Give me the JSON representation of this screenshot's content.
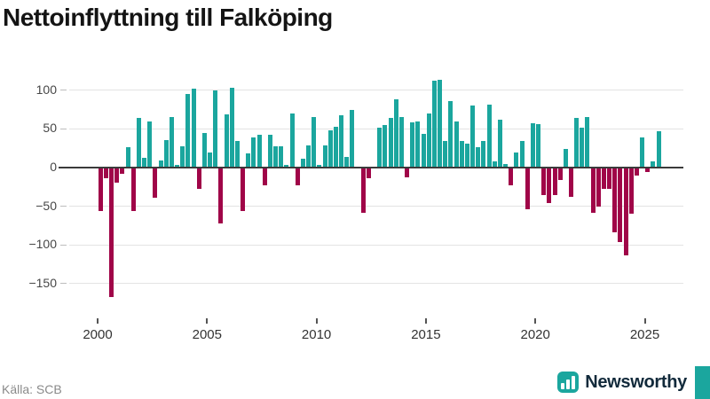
{
  "title": "Nettoinflyttning till Falköping",
  "source_label": "Källa: SCB",
  "brand": {
    "name": "Newsworthy",
    "icon": "bar-chart-icon"
  },
  "colors": {
    "positive": "#1BA69E",
    "negative": "#A00548",
    "zero_line": "#3b3b3b",
    "gridline": "#e3e3e3",
    "brand_teal": "#1BA69E",
    "brand_text": "#122a3b"
  },
  "chart_data": {
    "type": "bar",
    "title": "Nettoinflyttning till Falköping",
    "xlabel": "",
    "ylabel": "",
    "frequency": "quarterly",
    "grid": "horizontal",
    "legend": "none",
    "ylim": [
      -190,
      119
    ],
    "yticks": [
      100,
      50,
      0,
      -50,
      -100,
      -150
    ],
    "xticks": [
      2000,
      2005,
      2010,
      2015,
      2020,
      2025
    ],
    "series": [
      {
        "year": 2000,
        "values": [
          -55,
          -13,
          -167,
          -18
        ]
      },
      {
        "year": 2001,
        "values": [
          -7,
          26,
          -55,
          64
        ]
      },
      {
        "year": 2002,
        "values": [
          13,
          60,
          -38,
          9
        ]
      },
      {
        "year": 2003,
        "values": [
          36,
          65,
          3,
          28
        ]
      },
      {
        "year": 2004,
        "values": [
          95,
          102,
          -26,
          45
        ]
      },
      {
        "year": 2005,
        "values": [
          19,
          100,
          -71,
          69
        ]
      },
      {
        "year": 2006,
        "values": [
          103,
          34,
          -55,
          18
        ]
      },
      {
        "year": 2007,
        "values": [
          39,
          42,
          -22,
          43
        ]
      },
      {
        "year": 2008,
        "values": [
          28,
          28,
          4,
          70
        ]
      },
      {
        "year": 2009,
        "values": [
          -22,
          11,
          29,
          65
        ]
      },
      {
        "year": 2010,
        "values": [
          4,
          29,
          48,
          53
        ]
      },
      {
        "year": 2011,
        "values": [
          68,
          14,
          75,
          0
        ]
      },
      {
        "year": 2012,
        "values": [
          -57,
          -13,
          0,
          52
        ]
      },
      {
        "year": 2013,
        "values": [
          55,
          64,
          88,
          66
        ]
      },
      {
        "year": 2014,
        "values": [
          -12,
          58,
          60,
          44
        ]
      },
      {
        "year": 2015,
        "values": [
          70,
          112,
          114,
          34
        ]
      },
      {
        "year": 2016,
        "values": [
          86,
          60,
          35,
          31
        ]
      },
      {
        "year": 2017,
        "values": [
          80,
          26,
          34,
          82
        ]
      },
      {
        "year": 2018,
        "values": [
          8,
          62,
          5,
          -22
        ]
      },
      {
        "year": 2019,
        "values": [
          20,
          34,
          -53,
          57
        ]
      },
      {
        "year": 2020,
        "values": [
          56,
          -34,
          -45,
          -34
        ]
      },
      {
        "year": 2021,
        "values": [
          -15,
          24,
          -37,
          64
        ]
      },
      {
        "year": 2022,
        "values": [
          52,
          66,
          -57,
          -49
        ]
      },
      {
        "year": 2023,
        "values": [
          -26,
          -26,
          -83,
          -95
        ]
      },
      {
        "year": 2024,
        "values": [
          -112,
          -59,
          -9,
          39
        ]
      },
      {
        "year": 2025,
        "values": [
          -5,
          8,
          47
        ]
      }
    ]
  }
}
